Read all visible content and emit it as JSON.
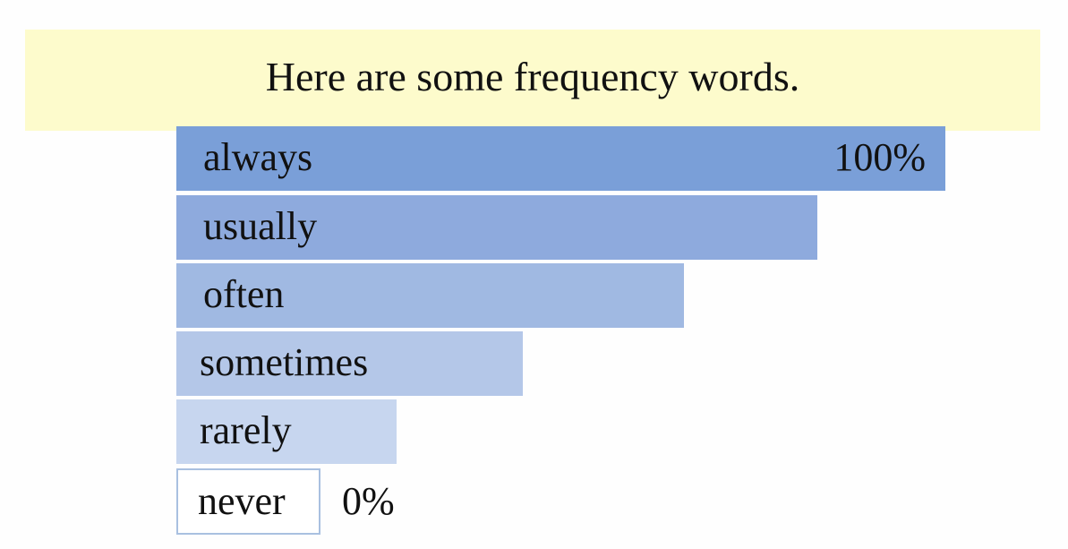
{
  "header": {
    "title": "Here are some frequency words."
  },
  "items": [
    {
      "label": "always",
      "note": "100%"
    },
    {
      "label": "usually"
    },
    {
      "label": "often"
    },
    {
      "label": "sometimes"
    },
    {
      "label": "rarely"
    },
    {
      "label": "never",
      "note": "0%"
    }
  ]
}
